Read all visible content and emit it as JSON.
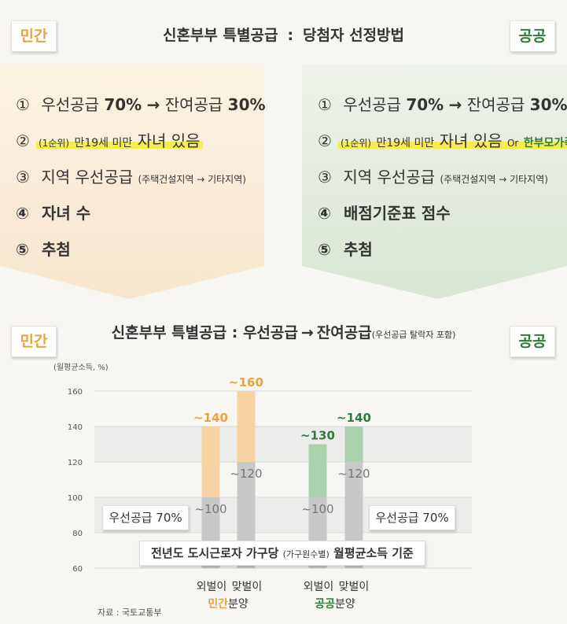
{
  "colors": {
    "private": "#e9a33a",
    "public": "#2f7a3c",
    "highlight": "#f7ec4e",
    "bar_gray": "#c8c8c8",
    "bar_orange": "#f7d3a4",
    "bar_green": "#a9d1ad"
  },
  "tags": {
    "private": "민간",
    "public": "공공"
  },
  "header": {
    "title_left": "신혼부부 특별공급",
    "separator": ":",
    "title_right": "당첨자 선정방법"
  },
  "private_steps": {
    "s1": {
      "num": "①",
      "a": "우선공급",
      "b": "70%",
      "arrow": "→",
      "c": "잔여공급",
      "d": "30%"
    },
    "s2": {
      "num": "②",
      "rank": "(1순위)",
      "text": "만19세 미만",
      "big": "자녀 있음"
    },
    "s3": {
      "num": "③",
      "text": "지역 우선공급",
      "detail": "(주택건설지역 → 기타지역)"
    },
    "s4": {
      "num": "④",
      "text": "자녀 수"
    },
    "s5": {
      "num": "⑤",
      "text": "추첨"
    }
  },
  "public_steps": {
    "s1": {
      "num": "①",
      "a": "우선공급",
      "b": "70%",
      "arrow": "→",
      "c": "잔여공급",
      "d": "30%"
    },
    "s2": {
      "num": "②",
      "rank": "(1순위)",
      "text": "만19세 미만",
      "big": "자녀 있음",
      "or": "Or",
      "alt": "한부모가족"
    },
    "s3": {
      "num": "③",
      "text": "지역 우선공급",
      "detail": "(주택건설지역 → 기타지역)"
    },
    "s4": {
      "num": "④",
      "text": "배점기준표 점수"
    },
    "s5": {
      "num": "⑤",
      "text": "추첨"
    }
  },
  "chart_title": {
    "left": "신혼부부 특별공급",
    "sep": ":",
    "a": "우선공급",
    "arrow": "→",
    "b": "잔여공급",
    "sub": "(우선공급 탈락자 포함)"
  },
  "boxes": {
    "priority_left": "우선공급 70%",
    "priority_right": "우선공급 70%",
    "basis_a": "전년도 도시근로자 가구당",
    "basis_small": "(가구원수별)",
    "basis_b": "월평균소득 기준"
  },
  "x_labels": {
    "single_private": "외벌이",
    "dual_private": "맞벌이",
    "single_public": "외벌이",
    "dual_public": "맞벌이"
  },
  "group_labels": {
    "private_colored": "민간",
    "private_rest": "분양",
    "public_colored": "공공",
    "public_rest": "분양"
  },
  "unit": "(월평균소득, %)",
  "source": "자료 : 국토교통부",
  "chart_data": {
    "type": "bar",
    "ylabel": "(월평균소득, %)",
    "ylim": [
      60,
      160
    ],
    "yticks": [
      60,
      80,
      100,
      120,
      140,
      160
    ],
    "categories": [
      "민간 외벌이",
      "민간 맞벌이",
      "공공 외벌이",
      "공공 맞벌이"
    ],
    "series": [
      {
        "name": "우선공급 70%",
        "values": [
          100,
          120,
          100,
          120
        ],
        "labels": [
          "~100",
          "~120",
          "~100",
          "~120"
        ]
      },
      {
        "name": "잔여공급",
        "values": [
          140,
          160,
          130,
          140
        ],
        "labels": [
          "~140",
          "~160",
          "~130",
          "~140"
        ]
      }
    ]
  }
}
